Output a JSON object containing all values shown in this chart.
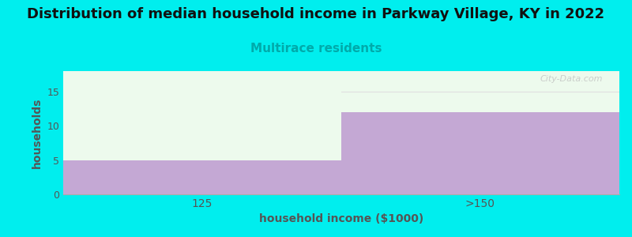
{
  "title": "Distribution of median household income in Parkway Village, KY in 2022",
  "subtitle": "Multirace residents",
  "xlabel": "household income ($1000)",
  "ylabel": "households",
  "categories": [
    "125",
    ">150"
  ],
  "values": [
    5,
    12
  ],
  "ylim": [
    0,
    18
  ],
  "yticks": [
    0,
    5,
    10,
    15
  ],
  "bar_color": "#c4a8d4",
  "bg_color": "#00EEEE",
  "plot_bg_color": "#edfaed",
  "grid_color": "#e0e0e0",
  "title_fontsize": 13,
  "subtitle_fontsize": 11,
  "subtitle_color": "#00AAAA",
  "tick_color": "#555555",
  "axis_label_color": "#555555",
  "watermark": "City-Data.com",
  "bar_width": 1.0
}
